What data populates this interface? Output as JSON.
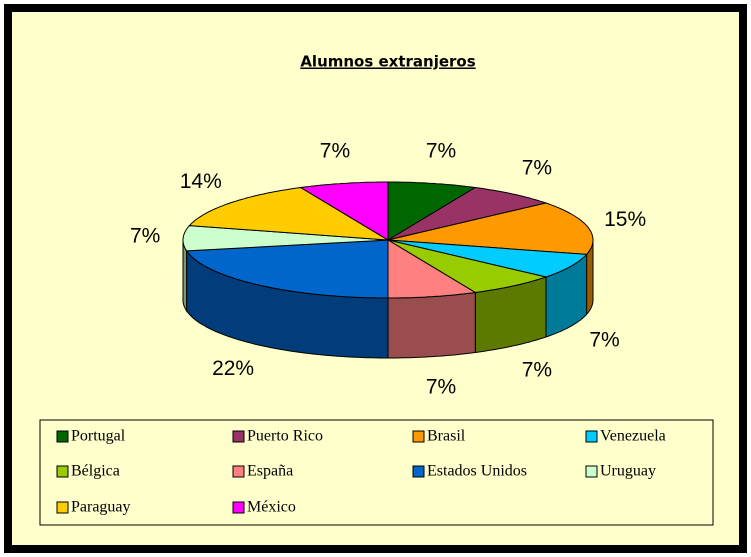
{
  "chart_data": {
    "type": "pie",
    "title": "Alumnos extranjeros",
    "categories": [
      "Portugal",
      "Puerto Rico",
      "Brasil",
      "Venezuela",
      "Bélgica",
      "España",
      "Estados Unidos",
      "Uruguay",
      "Paraguay",
      "México"
    ],
    "values": [
      7,
      7,
      15,
      7,
      7,
      7,
      22,
      7,
      14,
      7
    ],
    "value_labels": [
      "7%",
      "7%",
      "15%",
      "7%",
      "7%",
      "7%",
      "22%",
      "7%",
      "14%",
      "7%"
    ],
    "colors": [
      "#006600",
      "#993366",
      "#ff9900",
      "#00ccff",
      "#99cc00",
      "#ff8080",
      "#0066cc",
      "#ccffcc",
      "#ffcc00",
      "#ff00ff"
    ],
    "legend": "bottom"
  }
}
